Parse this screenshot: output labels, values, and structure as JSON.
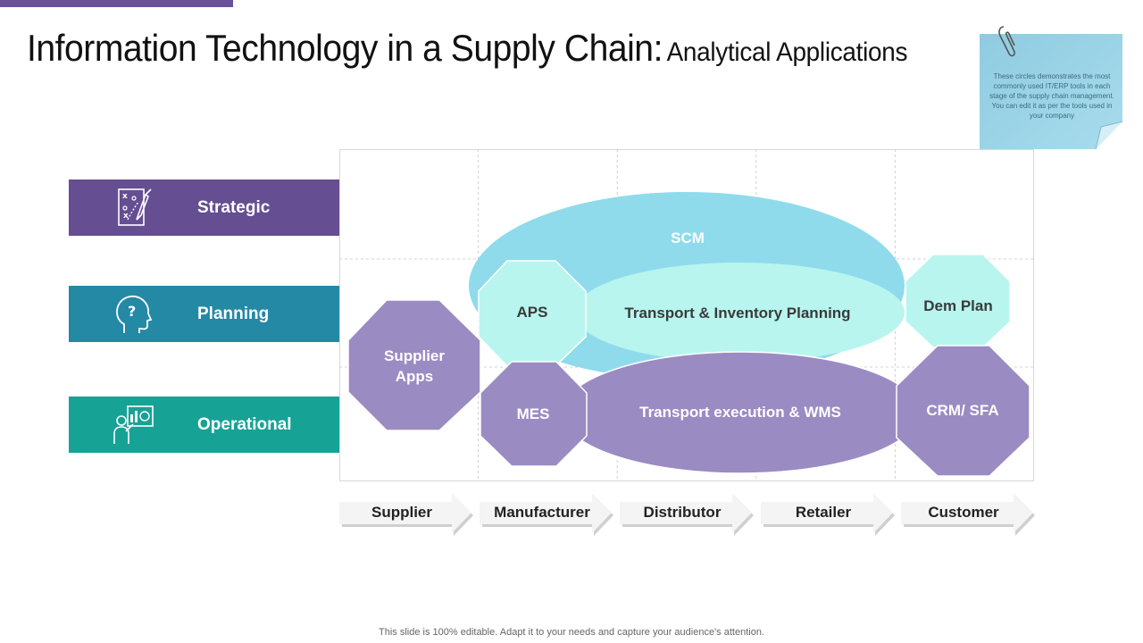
{
  "title": {
    "main": "Information Technology in a Supply Chain",
    "colon": ":",
    "sub": "Analytical Applications"
  },
  "note": {
    "text": "These circles demonstrates the most commonly used IT/ERP tools in each stage of the supply chain management. You can edit it as per the tools used in your company"
  },
  "categories": [
    {
      "label": "Strategic",
      "icon": "strategy-board-icon"
    },
    {
      "label": "Planning",
      "icon": "head-question-icon"
    },
    {
      "label": "Operational",
      "icon": "presenter-chart-icon"
    }
  ],
  "tools": {
    "scm": "SCM",
    "tip": "Transport & Inventory Planning",
    "aps": "APS",
    "supplier_apps": "Supplier Apps",
    "mes": "MES",
    "tewms": "Transport execution & WMS",
    "dem_plan": "Dem Plan",
    "crm_sfa": "CRM/ SFA"
  },
  "stages": [
    "Supplier",
    "Manufacturer",
    "Distributor",
    "Retailer",
    "Customer"
  ],
  "footer": "This slide is 100% editable. Adapt it to your needs and capture your audience's attention.",
  "colors": {
    "accent_purple": "#654e92",
    "planning_blue": "#2389a5",
    "operational_teal": "#17a296",
    "scm_ellipse": "#8fdbec",
    "planning_ellipse": "#b8f5ef",
    "operational_purple": "#9b8bc3"
  }
}
